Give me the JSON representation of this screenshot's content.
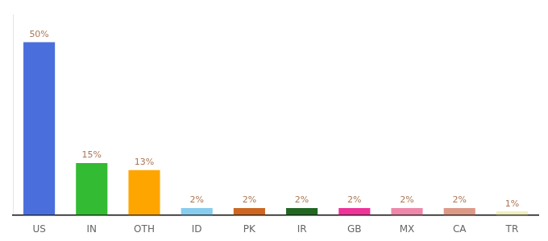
{
  "chart_data": {
    "type": "bar",
    "categories": [
      "US",
      "IN",
      "OTH",
      "ID",
      "PK",
      "IR",
      "GB",
      "MX",
      "CA",
      "TR"
    ],
    "values": [
      50,
      15,
      13,
      2,
      2,
      2,
      2,
      2,
      2,
      1
    ],
    "value_labels": [
      "50%",
      "15%",
      "13%",
      "2%",
      "2%",
      "2%",
      "2%",
      "2%",
      "2%",
      "1%"
    ],
    "colors": [
      "#4a6fdc",
      "#33bb33",
      "#ffa500",
      "#88ccee",
      "#cc6622",
      "#226622",
      "#ee3399",
      "#ee88aa",
      "#dd9988",
      "#eeeebb"
    ],
    "ylim": [
      0,
      58
    ],
    "grid": false,
    "data_labels": true,
    "tick_labels": "x"
  }
}
